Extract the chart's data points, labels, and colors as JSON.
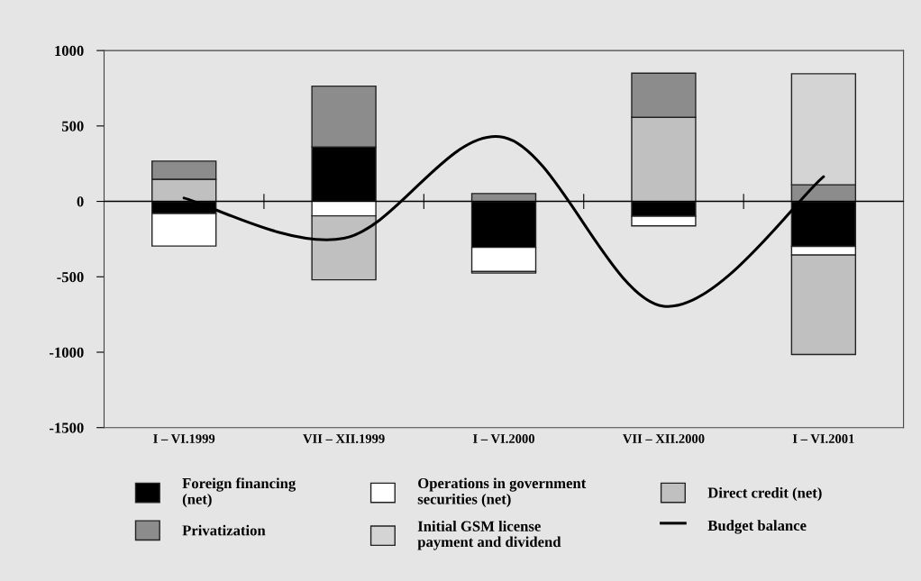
{
  "chart_data": {
    "type": "bar",
    "stacked": true,
    "categories": [
      "I – VI.1999",
      "VII – XII.1999",
      "I – VI.2000",
      "VII – XII.2000",
      "I – VI.2001"
    ],
    "series": [
      {
        "name": "Foreign financing\n(net)",
        "color": "#000000",
        "values": [
          -80,
          361,
          -305,
          -98,
          -298
        ]
      },
      {
        "name": "Operations in government\nsecurities (net)",
        "color": "#ffffff",
        "values": [
          -216,
          -96,
          -160,
          -64,
          -58
        ]
      },
      {
        "name": "Direct credit (net)",
        "color": "#c0c0c0",
        "values": [
          147,
          -424,
          -10,
          557,
          -659
        ]
      },
      {
        "name": "Privatization",
        "color": "#8c8c8c",
        "values": [
          120,
          403,
          52,
          293,
          110
        ]
      },
      {
        "name": "Initial GSM license\npayment and dividend",
        "color": "#d4d4d4",
        "values": [
          null,
          null,
          null,
          null,
          736
        ]
      },
      {
        "name": "Budget balance",
        "type": "line",
        "color": "#000000",
        "values": [
          22,
          -245,
          425,
          -695,
          164
        ]
      }
    ],
    "ylim": [
      -1500,
      1000
    ],
    "yticks": [
      -1500,
      -1000,
      -500,
      0,
      500,
      1000
    ],
    "ref_lines": [
      {
        "axis": "y",
        "value": 0,
        "color": "#000000"
      }
    ],
    "grid": false,
    "legend": "bottom",
    "marker": "none",
    "line_style": "solid"
  }
}
